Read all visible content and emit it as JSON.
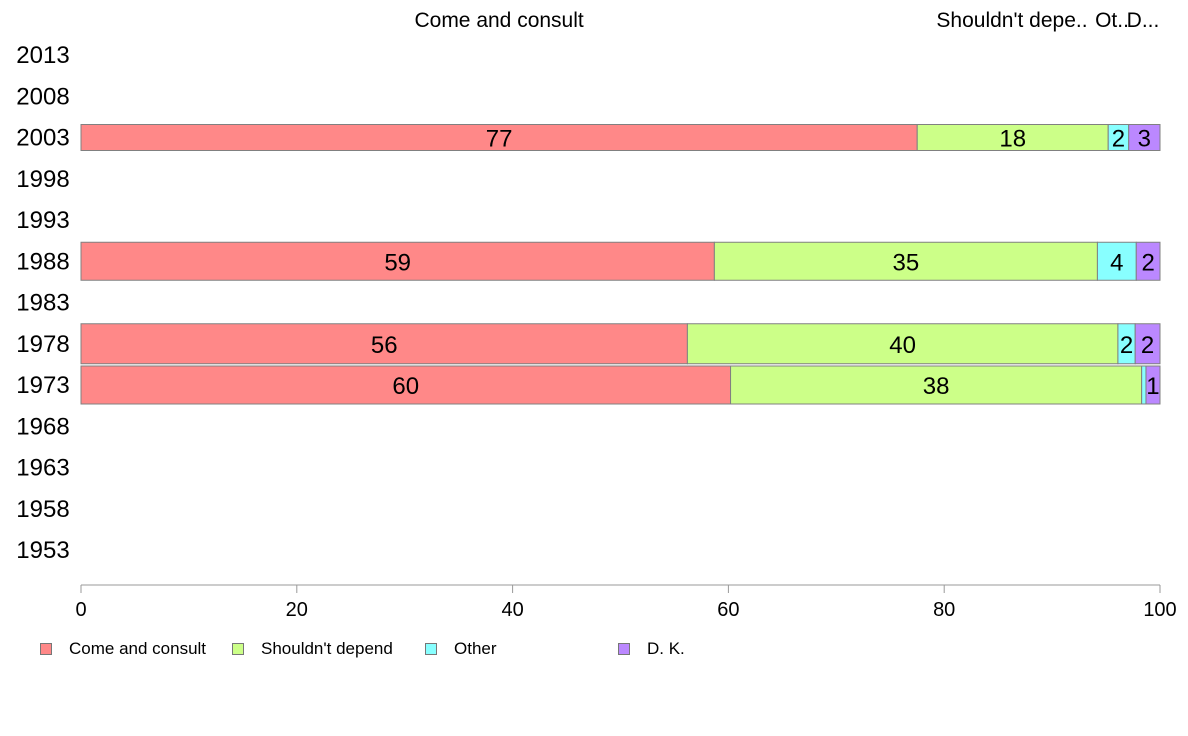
{
  "chart_data": {
    "type": "bar",
    "orientation": "horizontal",
    "stacked": true,
    "title": "",
    "xlabel": "",
    "ylabel": "",
    "xlim": [
      0,
      100
    ],
    "x_ticks": [
      0,
      20,
      40,
      60,
      80,
      100
    ],
    "categories": [
      "2013",
      "2008",
      "2003",
      "1998",
      "1993",
      "1988",
      "1983",
      "1978",
      "1973",
      "1968",
      "1963",
      "1958",
      "1953"
    ],
    "series": [
      {
        "name": "Come and consult",
        "color": "#FF8888",
        "values": [
          null,
          null,
          77.5,
          null,
          null,
          58.7,
          null,
          56.2,
          60.2,
          null,
          null,
          null,
          null
        ],
        "labels": [
          "",
          "",
          "77",
          "",
          "",
          "59",
          "",
          "56",
          "60",
          "",
          "",
          "",
          ""
        ]
      },
      {
        "name": "Shouldn't depend",
        "color": "#CCFF88",
        "values": [
          null,
          null,
          17.7,
          null,
          null,
          35.5,
          null,
          39.9,
          38.1,
          null,
          null,
          null,
          null
        ],
        "labels": [
          "",
          "",
          "18",
          "",
          "",
          "35",
          "",
          "40",
          "38",
          "",
          "",
          "",
          ""
        ]
      },
      {
        "name": "Other",
        "color": "#88FFFF",
        "values": [
          null,
          null,
          1.9,
          null,
          null,
          3.6,
          null,
          1.6,
          0.4,
          null,
          null,
          null,
          null
        ],
        "labels": [
          "",
          "",
          "2",
          "",
          "",
          "4",
          "",
          "2",
          "",
          "",
          "",
          "",
          ""
        ]
      },
      {
        "name": "D. K.",
        "color": "#BB88FF",
        "values": [
          null,
          null,
          2.9,
          null,
          null,
          2.2,
          null,
          2.3,
          1.3,
          null,
          null,
          null,
          null
        ],
        "labels": [
          "",
          "",
          "3",
          "",
          "",
          "2",
          "",
          "2",
          "1",
          "",
          "",
          "",
          ""
        ]
      }
    ],
    "top_labels": [
      "Come and consult",
      "Shouldn't depe..",
      "Ot..",
      "D..."
    ],
    "legend_position": "bottom-left",
    "grid": false
  }
}
